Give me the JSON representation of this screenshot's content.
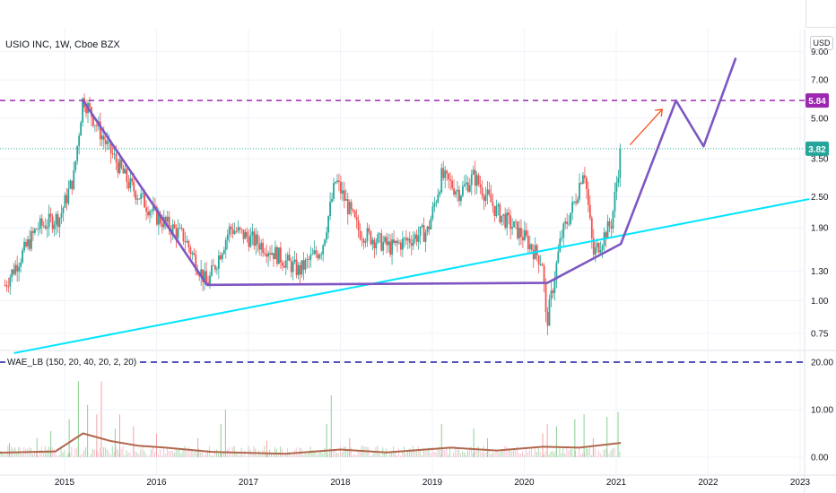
{
  "title": "USIO INC, 1W, Cboe BZX",
  "currency_label": "USD",
  "indicator_title": "WAE_LB (150, 20, 40, 20, 2, 20)",
  "colors": {
    "up": "#26a69a",
    "down": "#ef5350",
    "resistance": "#9c27b0",
    "pattern": "#7e57c2",
    "trendline": "#00e5ff",
    "arrow": "#f4511e",
    "indicator_line": "#b0684e",
    "indicator_dash": "#1a1aa8",
    "last_price": "#26a69a"
  },
  "chart_data": [
    {
      "type": "candlestick",
      "title": "USIO INC, 1W, Cboe BZX",
      "y_scale": "log",
      "ylim": [
        0.65,
        11
      ],
      "y_ticks": [
        "9.00",
        "7.00",
        "5.00",
        "3.50",
        "2.50",
        "1.90",
        "1.30",
        "1.00",
        "0.75"
      ],
      "x_ticks": [
        "2015",
        "2016",
        "2017",
        "2018",
        "2019",
        "2020",
        "2021",
        "2022",
        "2023"
      ],
      "resistance_level": {
        "value": 5.84,
        "label": "5.84"
      },
      "last_price": {
        "value": 3.82,
        "label": "3.82"
      },
      "price_path": [
        {
          "x": 2014.35,
          "y": 1.15
        },
        {
          "x": 2014.7,
          "y": 1.9
        },
        {
          "x": 2014.95,
          "y": 2.1
        },
        {
          "x": 2015.1,
          "y": 3.0
        },
        {
          "x": 2015.2,
          "y": 6.0
        },
        {
          "x": 2015.45,
          "y": 4.0
        },
        {
          "x": 2015.7,
          "y": 2.8
        },
        {
          "x": 2016.0,
          "y": 2.1
        },
        {
          "x": 2016.3,
          "y": 1.75
        },
        {
          "x": 2016.55,
          "y": 1.15
        },
        {
          "x": 2016.8,
          "y": 1.9
        },
        {
          "x": 2017.2,
          "y": 1.6
        },
        {
          "x": 2017.55,
          "y": 1.3
        },
        {
          "x": 2017.8,
          "y": 1.6
        },
        {
          "x": 2017.95,
          "y": 2.9
        },
        {
          "x": 2018.2,
          "y": 1.85
        },
        {
          "x": 2018.55,
          "y": 1.6
        },
        {
          "x": 2018.95,
          "y": 1.85
        },
        {
          "x": 2019.1,
          "y": 3.0
        },
        {
          "x": 2019.3,
          "y": 2.6
        },
        {
          "x": 2019.45,
          "y": 3.0
        },
        {
          "x": 2019.7,
          "y": 2.2
        },
        {
          "x": 2020.0,
          "y": 1.75
        },
        {
          "x": 2020.2,
          "y": 1.4
        },
        {
          "x": 2020.24,
          "y": 0.8
        },
        {
          "x": 2020.4,
          "y": 1.75
        },
        {
          "x": 2020.55,
          "y": 2.4
        },
        {
          "x": 2020.65,
          "y": 3.3
        },
        {
          "x": 2020.75,
          "y": 1.5
        },
        {
          "x": 2020.95,
          "y": 2.0
        },
        {
          "x": 2021.05,
          "y": 3.82
        }
      ],
      "annotations": {
        "pattern_line": [
          {
            "x": 2015.2,
            "y": 5.84
          },
          {
            "x": 2016.55,
            "y": 1.15
          },
          {
            "x": 2020.25,
            "y": 1.17
          },
          {
            "x": 2021.05,
            "y": 1.65
          },
          {
            "x": 2021.65,
            "y": 5.84
          },
          {
            "x": 2021.95,
            "y": 3.9
          },
          {
            "x": 2022.3,
            "y": 8.5
          }
        ],
        "trendline": [
          {
            "x": 2014.45,
            "y": 0.63
          },
          {
            "x": 2023.1,
            "y": 2.45
          }
        ],
        "arrow": [
          {
            "x": 2021.15,
            "y": 3.95
          },
          {
            "x": 2021.5,
            "y": 5.4
          }
        ]
      }
    },
    {
      "type": "bar",
      "title": "WAE_LB (150, 20, 40, 20, 2, 20)",
      "ylim": [
        0,
        20
      ],
      "y_ticks": [
        "20.00",
        "10.00",
        "0.00"
      ],
      "dashed_level": 20,
      "explosion_line": [
        {
          "x": 2014.0,
          "y": 0.8
        },
        {
          "x": 2014.9,
          "y": 1.2
        },
        {
          "x": 2015.2,
          "y": 5.0
        },
        {
          "x": 2015.5,
          "y": 3.4
        },
        {
          "x": 2015.8,
          "y": 2.4
        },
        {
          "x": 2016.1,
          "y": 2.0
        },
        {
          "x": 2016.6,
          "y": 1.1
        },
        {
          "x": 2017.4,
          "y": 0.7
        },
        {
          "x": 2018.0,
          "y": 1.6
        },
        {
          "x": 2018.5,
          "y": 1.0
        },
        {
          "x": 2019.2,
          "y": 2.0
        },
        {
          "x": 2019.7,
          "y": 1.4
        },
        {
          "x": 2020.2,
          "y": 2.2
        },
        {
          "x": 2020.6,
          "y": 2.0
        },
        {
          "x": 2021.05,
          "y": 3.0
        }
      ],
      "spikes_up": [
        {
          "x": 2014.4,
          "y": 3.0
        },
        {
          "x": 2014.7,
          "y": 4.0
        },
        {
          "x": 2014.85,
          "y": 5.5
        },
        {
          "x": 2015.05,
          "y": 8.0
        },
        {
          "x": 2015.15,
          "y": 16.0
        },
        {
          "x": 2015.25,
          "y": 11.0
        },
        {
          "x": 2015.55,
          "y": 6.0
        },
        {
          "x": 2016.7,
          "y": 7.0
        },
        {
          "x": 2016.75,
          "y": 10.0
        },
        {
          "x": 2017.85,
          "y": 7.0
        },
        {
          "x": 2017.9,
          "y": 13.0
        },
        {
          "x": 2019.1,
          "y": 7.0
        },
        {
          "x": 2019.45,
          "y": 6.0
        },
        {
          "x": 2020.35,
          "y": 6.5
        },
        {
          "x": 2020.55,
          "y": 8.0
        },
        {
          "x": 2020.65,
          "y": 9.0
        },
        {
          "x": 2020.9,
          "y": 8.5
        },
        {
          "x": 2021.02,
          "y": 9.5
        }
      ],
      "spikes_down": [
        {
          "x": 2015.35,
          "y": 9.0
        },
        {
          "x": 2015.4,
          "y": 16.0
        },
        {
          "x": 2015.6,
          "y": 9.0
        },
        {
          "x": 2015.75,
          "y": 6.5
        },
        {
          "x": 2016.0,
          "y": 5.0
        },
        {
          "x": 2016.45,
          "y": 4.0
        },
        {
          "x": 2017.2,
          "y": 3.5
        },
        {
          "x": 2018.1,
          "y": 4.0
        },
        {
          "x": 2019.6,
          "y": 4.0
        },
        {
          "x": 2020.2,
          "y": 5.0
        },
        {
          "x": 2020.25,
          "y": 7.0
        },
        {
          "x": 2020.75,
          "y": 4.0
        }
      ]
    }
  ]
}
